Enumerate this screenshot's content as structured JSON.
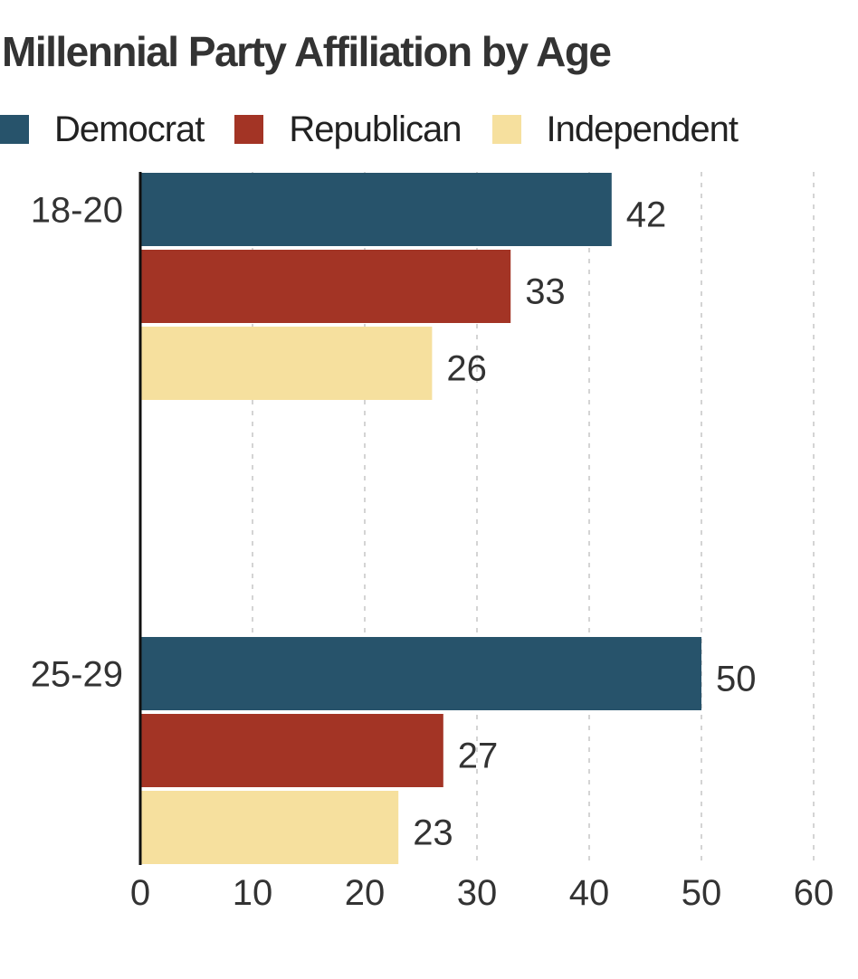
{
  "chart_data": {
    "type": "bar",
    "orientation": "horizontal",
    "title": "Millennial Party Affiliation by Age",
    "categories": [
      "18-20",
      "25-29"
    ],
    "series": [
      {
        "name": "Democrat",
        "color": "#27536b",
        "values": [
          42,
          50
        ]
      },
      {
        "name": "Republican",
        "color": "#a33425",
        "values": [
          33,
          27
        ]
      },
      {
        "name": "Independent",
        "color": "#f6e09e",
        "values": [
          26,
          23
        ]
      }
    ],
    "xlim": [
      0,
      60
    ],
    "xticks": [
      "0",
      "10",
      "20",
      "30",
      "40",
      "50",
      "60"
    ],
    "xlabel": "",
    "ylabel": "",
    "grid": "vertical dashed",
    "legend_position": "top-left"
  }
}
